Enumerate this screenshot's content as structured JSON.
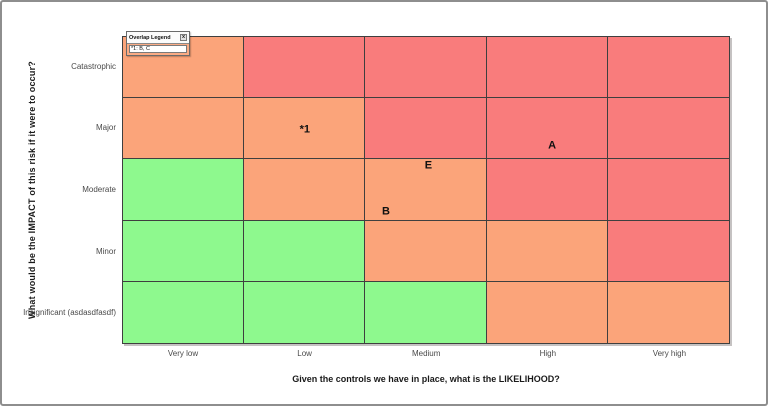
{
  "window": {
    "background": "#ffffff",
    "border_color": "#8e8e8e"
  },
  "chart_data": {
    "type": "heatmap",
    "title": "",
    "xlabel": "Given the controls we have in place, what is the LIKELIHOOD?",
    "ylabel": "What would be the IMPACT of this risk if it were to occur?",
    "x_categories": [
      "Very low",
      "Low",
      "Medium",
      "High",
      "Very high"
    ],
    "y_categories": [
      "Catastrophic",
      "Major",
      "Moderate",
      "Minor",
      "Insignificant (asdasdfasdf)"
    ],
    "cell_colors": [
      [
        "orange",
        "red",
        "red",
        "red",
        "red"
      ],
      [
        "orange",
        "orange",
        "red",
        "red",
        "red"
      ],
      [
        "green",
        "orange",
        "orange",
        "red",
        "red"
      ],
      [
        "green",
        "green",
        "orange",
        "orange",
        "red"
      ],
      [
        "green",
        "green",
        "green",
        "orange",
        "orange"
      ]
    ],
    "color_map": {
      "green": "#8ef98e",
      "orange": "#fba47a",
      "red": "#f97c7c"
    },
    "grid_line_color": "#3f3f3f",
    "markers": [
      {
        "label": "*1",
        "row": 1,
        "col": 1,
        "dx": 0.5,
        "dy": 0.52
      },
      {
        "label": "A",
        "row": 1,
        "col": 3,
        "dx": 0.54,
        "dy": 0.78
      },
      {
        "label": "E",
        "row": 2,
        "col": 2,
        "dx": 0.52,
        "dy": 0.1
      },
      {
        "label": "B",
        "row": 2,
        "col": 2,
        "dx": 0.17,
        "dy": 0.86
      }
    ]
  },
  "legend": {
    "title": "Overlap Legend",
    "close_glyph": "x",
    "entries": [
      "*1: B, C"
    ]
  }
}
